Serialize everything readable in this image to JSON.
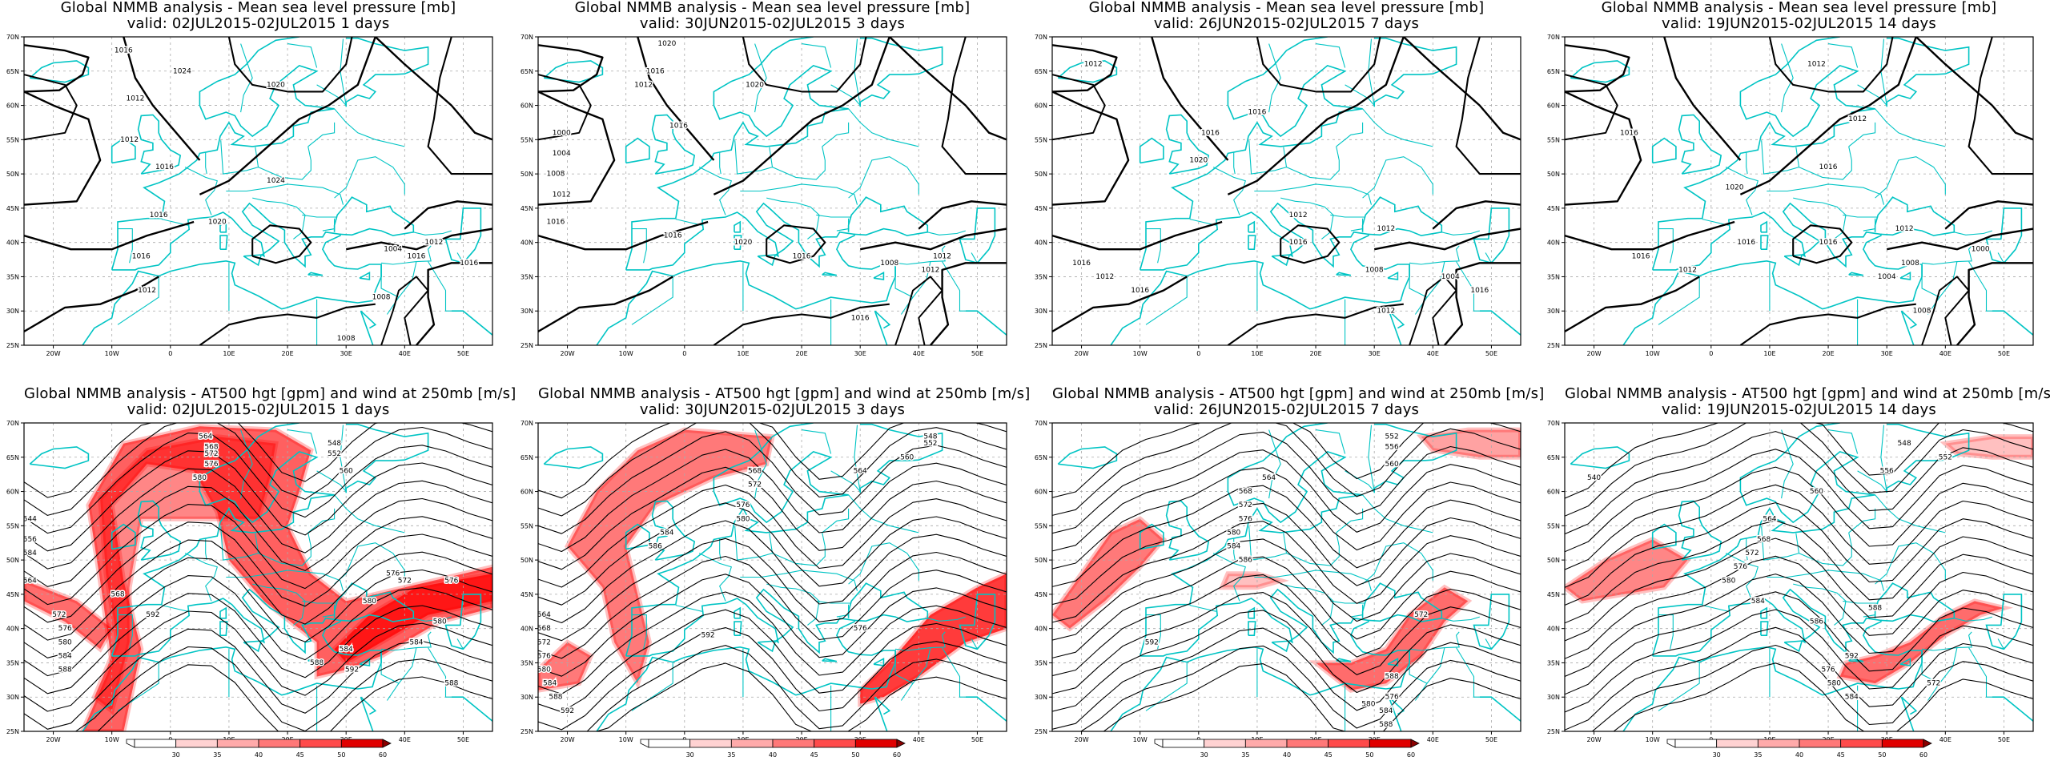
{
  "columns": [
    {
      "valid": "valid: 02JUL2015-02JUL2015   1 days"
    },
    {
      "valid": "valid: 30JUN2015-02JUL2015   3 days"
    },
    {
      "valid": "valid: 26JUN2015-02JUL2015   7 days"
    },
    {
      "valid": "valid: 19JUN2015-02JUL2015   14 days"
    }
  ],
  "rows": [
    {
      "title": "Global NMMB analysis - Mean sea level pressure [mb]",
      "type": "mslp"
    },
    {
      "title": "Global NMMB analysis - AT500 hgt [gpm] and wind at 250mb [m/s]",
      "type": "z500"
    }
  ],
  "axes": {
    "lon_labels": [
      "20W",
      "10W",
      "0",
      "10E",
      "20E",
      "30E",
      "40E",
      "50E"
    ],
    "lat_labels": [
      "25N",
      "30N",
      "35N",
      "40N",
      "45N",
      "50N",
      "55N",
      "60N",
      "65N",
      "70N"
    ],
    "lon_range": [
      -25,
      55
    ],
    "lat_range": [
      25,
      70
    ]
  },
  "mslp_labels": [
    [
      "1016",
      "1024",
      "1012",
      "1020",
      "1012",
      "1016",
      "1016",
      "1020",
      "1024",
      "1016",
      "1012",
      "1004",
      "1016",
      "1012",
      "1008",
      "1008",
      "1016"
    ],
    [
      "1020",
      "1016",
      "1012",
      "1020",
      "1016",
      "1000",
      "1004",
      "1008",
      "1012",
      "1016",
      "1016",
      "1020",
      "1016",
      "1008",
      "1012",
      "1012",
      "1016"
    ],
    [
      "1012",
      "1016",
      "1016",
      "1020",
      "1012",
      "1012",
      "1016",
      "1016",
      "1012",
      "1016",
      "1008",
      "1004",
      "1016",
      "1012"
    ],
    [
      "1012",
      "1012",
      "1016",
      "1016",
      "1020",
      "1012",
      "1016",
      "1016",
      "1012",
      "1016",
      "1008",
      "1004",
      "1008",
      "1000",
      "1016"
    ]
  ],
  "z500_labels": [
    [
      "564",
      "568",
      "572",
      "576",
      "580",
      "548",
      "552",
      "560",
      "544",
      "556",
      "584",
      "564",
      "568",
      "572",
      "576",
      "580",
      "584",
      "588",
      "576",
      "572",
      "592",
      "580",
      "584",
      "588",
      "592",
      "576",
      "580",
      "584",
      "588"
    ],
    [
      "548",
      "552",
      "560",
      "564",
      "568",
      "572",
      "576",
      "580",
      "584",
      "586",
      "564",
      "568",
      "572",
      "576",
      "580",
      "584",
      "588",
      "592",
      "592",
      "576"
    ],
    [
      "552",
      "556",
      "560",
      "564",
      "568",
      "572",
      "576",
      "580",
      "584",
      "586",
      "572",
      "592",
      "588",
      "576",
      "580",
      "584",
      "588"
    ],
    [
      "540",
      "548",
      "552",
      "556",
      "560",
      "564",
      "568",
      "572",
      "576",
      "580",
      "584",
      "586",
      "588",
      "592",
      "572",
      "576",
      "580",
      "584"
    ]
  ],
  "colorbar": {
    "ticks": [
      "30",
      "35",
      "40",
      "45",
      "50",
      "60"
    ],
    "colors": [
      "#ffffff",
      "#ffd2d2",
      "#ffaaaa",
      "#ff7878",
      "#ff4a4a",
      "#e00000",
      "#8a0000"
    ]
  },
  "colors": {
    "coast": "#00c4c4",
    "contour": "#000000",
    "grid": "#aaaaaa",
    "jet": "#ff0000"
  }
}
